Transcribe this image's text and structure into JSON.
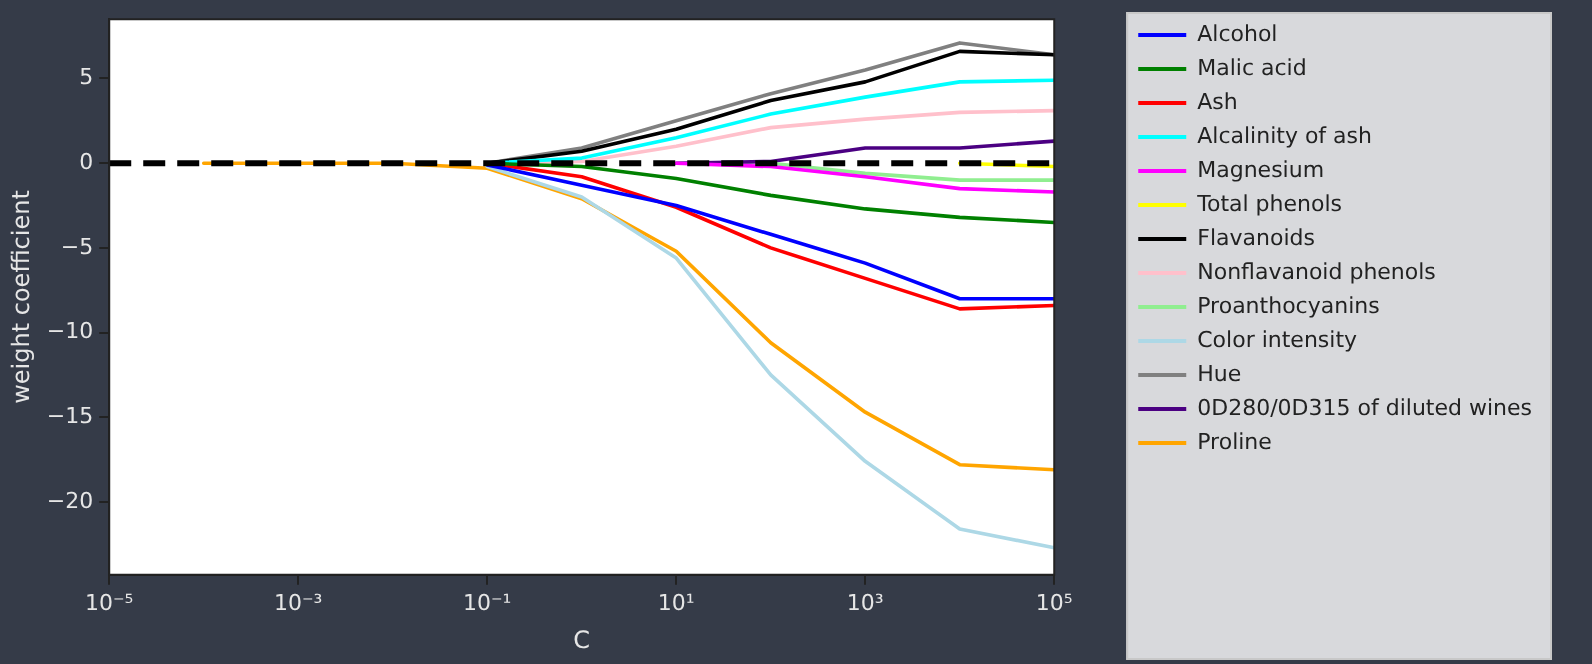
{
  "chart_data": {
    "type": "line",
    "xlabel": "C",
    "ylabel": "weight coefficient",
    "log": "x",
    "grid": false,
    "legend": "right",
    "marker": "none",
    "line_style": "solid",
    "x": [
      0.0001,
      0.001,
      0.01,
      0.1,
      1,
      10,
      100,
      1000,
      10000,
      100000
    ],
    "xlim": [
      1e-05,
      100000
    ],
    "xticks": [
      {
        "value": 1e-05,
        "label": "10⁻⁵"
      },
      {
        "value": 0.001,
        "label": "10⁻³"
      },
      {
        "value": 0.1,
        "label": "10⁻¹"
      },
      {
        "value": 10,
        "label": "10¹"
      },
      {
        "value": 1000,
        "label": "10³"
      },
      {
        "value": 100000,
        "label": "10⁵"
      }
    ],
    "ylim": [
      -24.3,
      8.5
    ],
    "yticks": [
      {
        "value": -20,
        "label": "−20"
      },
      {
        "value": -15,
        "label": "−15"
      },
      {
        "value": -10,
        "label": "−10"
      },
      {
        "value": -5,
        "label": "−5"
      },
      0,
      5
    ],
    "ref_lines": [
      {
        "axis": "y",
        "value": 0,
        "color": "#000000",
        "line_style": "dashed"
      }
    ],
    "series": [
      {
        "name": "Alcohol",
        "color": "#0000ff",
        "values": [
          null,
          null,
          null,
          -0.1,
          -1.3,
          -2.5,
          -4.2,
          -5.9,
          -8.0,
          -8.0
        ]
      },
      {
        "name": "Malic acid",
        "color": "#008000",
        "values": [
          null,
          null,
          null,
          0,
          -0.2,
          -0.9,
          -1.9,
          -2.7,
          -3.2,
          -3.5
        ]
      },
      {
        "name": "Ash",
        "color": "#ff0000",
        "values": [
          null,
          null,
          null,
          0,
          -0.8,
          -2.6,
          -5.0,
          -6.8,
          -8.6,
          -8.4
        ]
      },
      {
        "name": "Alcalinity of ash",
        "color": "#00ffff",
        "values": [
          null,
          null,
          null,
          0,
          0.3,
          1.5,
          2.9,
          3.9,
          4.8,
          4.9
        ]
      },
      {
        "name": "Magnesium",
        "color": "#ff00ff",
        "values": [
          null,
          null,
          null,
          null,
          null,
          0,
          -0.2,
          -0.8,
          -1.5,
          -1.7
        ]
      },
      {
        "name": "Total phenols",
        "color": "#ffff00",
        "values": [
          null,
          null,
          null,
          null,
          null,
          null,
          null,
          null,
          0,
          -0.2
        ]
      },
      {
        "name": "Flavanoids",
        "color": "#000000",
        "values": [
          null,
          null,
          null,
          0,
          0.7,
          2.0,
          3.7,
          4.8,
          6.6,
          6.4
        ]
      },
      {
        "name": "Nonflavanoid phenols",
        "color": "#ffc0cb",
        "values": [
          null,
          null,
          null,
          0,
          0.1,
          1.0,
          2.1,
          2.6,
          3.0,
          3.1
        ]
      },
      {
        "name": "Proanthocyanins",
        "color": "#90ee90",
        "values": [
          null,
          null,
          null,
          null,
          null,
          null,
          0,
          -0.6,
          -1.0,
          -1.0
        ]
      },
      {
        "name": "Color intensity",
        "color": "#add8e6",
        "values": [
          null,
          null,
          null,
          -0.2,
          -2.0,
          -5.6,
          -12.5,
          -17.6,
          -21.6,
          -22.7
        ]
      },
      {
        "name": "Hue",
        "color": "#808080",
        "values": [
          null,
          null,
          null,
          0,
          0.9,
          2.5,
          4.1,
          5.5,
          7.1,
          6.4
        ]
      },
      {
        "name": "0D280/0D315 of diluted wines",
        "color": "#4b0082",
        "values": [
          null,
          null,
          null,
          null,
          null,
          0,
          0.1,
          0.9,
          0.9,
          1.3
        ]
      },
      {
        "name": "Proline",
        "color": "#ffa500",
        "values": [
          0,
          0,
          0,
          -0.3,
          -2.1,
          -5.2,
          -10.6,
          -14.7,
          -17.8,
          -18.1
        ]
      }
    ]
  }
}
